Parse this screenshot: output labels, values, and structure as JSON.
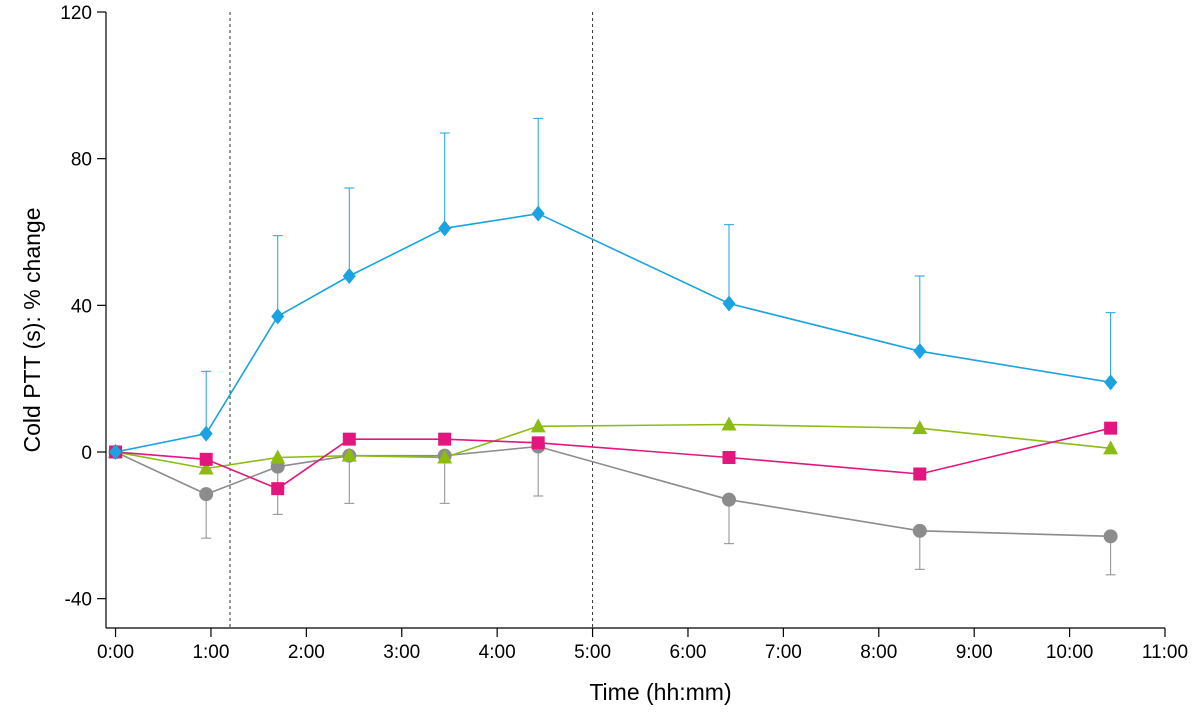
{
  "chart_data": {
    "type": "line",
    "title": "",
    "xlabel": "Time (hh:mm)",
    "ylabel": "Cold PTT (s): % change",
    "xlim": [
      -0.1,
      11.0
    ],
    "ylim": [
      -48,
      120
    ],
    "yticks": [
      -40,
      0,
      40,
      80,
      120
    ],
    "ytick_labels": [
      "-40",
      "0",
      "40",
      "80",
      "120"
    ],
    "xticks": [
      0,
      1,
      2,
      3,
      4,
      5,
      6,
      7,
      8,
      9,
      10,
      11
    ],
    "xtick_labels": [
      "0:00",
      "1:00",
      "2:00",
      "3:00",
      "4:00",
      "5:00",
      "6:00",
      "7:00",
      "8:00",
      "9:00",
      "10:00",
      "11:00"
    ],
    "reference_lines_x": [
      1.2,
      5.0
    ],
    "grid": false,
    "legend": "none",
    "series": [
      {
        "name": "diamond-series",
        "color": "#1aa3e0",
        "marker": "diamond",
        "x": [
          0,
          0.95,
          1.7,
          2.45,
          3.45,
          4.43,
          6.43,
          8.43,
          10.43
        ],
        "values": [
          0,
          5,
          37,
          48,
          61,
          65,
          40.5,
          27.5,
          19
        ],
        "error_upper": [
          0,
          17,
          22,
          24,
          26,
          26,
          21.5,
          20.5,
          19
        ],
        "error_lower": [
          0,
          0,
          0,
          0,
          0,
          0,
          0,
          0,
          0
        ]
      },
      {
        "name": "circle-series",
        "color": "#8c8c8c",
        "marker": "circle",
        "x": [
          0,
          0.95,
          1.7,
          2.45,
          3.45,
          4.43,
          6.43,
          8.43,
          10.43
        ],
        "values": [
          0,
          -11.5,
          -4,
          -1,
          -1,
          1.5,
          -13,
          -21.5,
          -23
        ],
        "error_upper": [
          0,
          0,
          0,
          0,
          0,
          0,
          0,
          0,
          0
        ],
        "error_lower": [
          0,
          12,
          13,
          13,
          13,
          13.5,
          12,
          10.5,
          10.5
        ]
      },
      {
        "name": "square-series",
        "color": "#e3167f",
        "marker": "square",
        "x": [
          0,
          0.95,
          1.7,
          2.45,
          3.45,
          4.43,
          6.43,
          8.43,
          10.43
        ],
        "values": [
          0,
          -2,
          -10,
          3.5,
          3.5,
          2.5,
          -1.5,
          -6,
          6.5
        ],
        "error_upper": [
          0,
          0,
          0,
          0,
          0,
          0,
          0,
          0,
          0
        ],
        "error_lower": [
          0,
          0,
          0,
          0,
          0,
          0,
          0,
          0,
          0
        ]
      },
      {
        "name": "triangle-series",
        "color": "#8cbc14",
        "marker": "triangle",
        "x": [
          0,
          0.95,
          1.7,
          2.45,
          3.45,
          4.43,
          6.43,
          8.43,
          10.43
        ],
        "values": [
          0,
          -4.5,
          -1.5,
          -1,
          -1.5,
          7,
          7.5,
          6.5,
          1
        ],
        "error_upper": [
          0,
          0,
          0,
          0,
          0,
          0,
          0,
          0,
          0
        ],
        "error_lower": [
          0,
          0,
          0,
          0,
          0,
          0,
          0,
          0,
          0
        ]
      }
    ]
  }
}
